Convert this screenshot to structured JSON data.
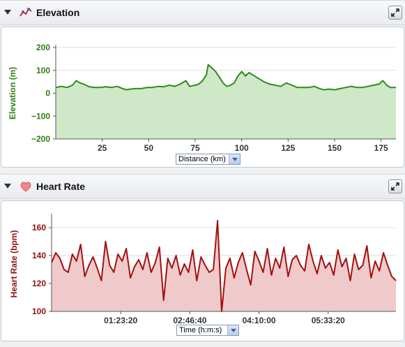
{
  "elevation_panel": {
    "title": "Elevation",
    "axis_selector": "Distance (km)",
    "colors": {
      "line": "#2f8a1a",
      "fill": "#cfe8c8",
      "axis_text": "#2e7d14"
    }
  },
  "heart_panel": {
    "title": "Heart Rate",
    "axis_selector": "Time (h:m:s)",
    "colors": {
      "line": "#a31010",
      "fill": "#f0caca",
      "axis_text": "#8b1212"
    }
  },
  "chart_data": [
    {
      "type": "area",
      "title": "",
      "ylabel": "Elevation (m)",
      "xlabel": "Distance (km)",
      "xlim": [
        0,
        183
      ],
      "ylim": [
        -200,
        200
      ],
      "x_ticks": [
        "25",
        "50",
        "75",
        "100",
        "125",
        "150",
        "175"
      ],
      "y_ticks": [
        "200",
        "100",
        "0",
        "−100",
        "−200"
      ],
      "x": [
        0,
        3,
        6,
        9,
        11,
        13,
        15,
        18,
        21,
        24,
        27,
        30,
        33,
        36,
        38,
        40,
        43,
        46,
        49,
        52,
        55,
        58,
        61,
        64,
        67,
        70,
        72,
        75,
        77,
        79,
        81,
        82,
        84,
        86,
        88,
        90,
        92,
        94,
        96,
        98,
        100,
        102,
        104,
        106,
        108,
        110,
        112,
        115,
        118,
        121,
        124,
        127,
        130,
        133,
        136,
        139,
        142,
        144,
        147,
        150,
        153,
        156,
        159,
        162,
        165,
        168,
        171,
        174,
        176,
        178,
        180,
        183
      ],
      "values": [
        25,
        30,
        25,
        35,
        55,
        45,
        40,
        28,
        25,
        25,
        28,
        25,
        30,
        20,
        15,
        18,
        20,
        20,
        25,
        25,
        30,
        28,
        35,
        30,
        40,
        55,
        30,
        35,
        40,
        55,
        80,
        125,
        110,
        95,
        70,
        45,
        30,
        35,
        45,
        75,
        95,
        75,
        90,
        80,
        70,
        60,
        50,
        40,
        35,
        30,
        45,
        35,
        25,
        25,
        25,
        30,
        20,
        15,
        18,
        15,
        20,
        25,
        30,
        25,
        25,
        30,
        35,
        40,
        55,
        35,
        25,
        25
      ]
    },
    {
      "type": "area",
      "title": "",
      "ylabel": "Heart Rate (bpm)",
      "xlabel": "Time (h:m:s)",
      "xlim": [
        0,
        24900
      ],
      "ylim": [
        100,
        168
      ],
      "x_ticks": [
        "01:23:20",
        "02:46:40",
        "04:10:00",
        "05:33:20"
      ],
      "x": [
        0,
        300,
        600,
        900,
        1200,
        1500,
        1800,
        2100,
        2400,
        2700,
        3000,
        3300,
        3600,
        3900,
        4200,
        4500,
        4800,
        5100,
        5400,
        5700,
        6000,
        6300,
        6600,
        6900,
        7200,
        7500,
        7800,
        8100,
        8400,
        8700,
        9000,
        9300,
        9600,
        9900,
        10200,
        10500,
        10800,
        11100,
        11400,
        11700,
        12000,
        12300,
        12600,
        12900,
        13200,
        13500,
        13800,
        14100,
        14400,
        14700,
        15000,
        15300,
        15600,
        15900,
        16200,
        16500,
        16800,
        17100,
        17400,
        17700,
        18000,
        18300,
        18600,
        18900,
        19200,
        19500,
        19800,
        20100,
        20400,
        20700,
        21000,
        21300,
        21600,
        21900,
        22200,
        22500,
        22800,
        23100,
        23400,
        23700,
        24000,
        24300,
        24600,
        24900
      ],
      "values": [
        135,
        142,
        138,
        130,
        128,
        141,
        136,
        148,
        125,
        133,
        139,
        131,
        122,
        150,
        133,
        128,
        141,
        136,
        145,
        124,
        132,
        137,
        130,
        142,
        128,
        135,
        146,
        108,
        138,
        131,
        140,
        126,
        134,
        128,
        144,
        122,
        139,
        133,
        128,
        130,
        165,
        100,
        131,
        138,
        124,
        135,
        142,
        130,
        119,
        143,
        136,
        128,
        145,
        126,
        138,
        131,
        146,
        125,
        137,
        140,
        133,
        129,
        148,
        136,
        127,
        140,
        131,
        135,
        126,
        144,
        132,
        138,
        122,
        141,
        130,
        133,
        147,
        124,
        136,
        129,
        142,
        133,
        125,
        122
      ]
    }
  ]
}
